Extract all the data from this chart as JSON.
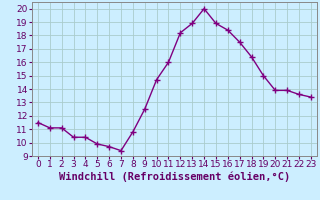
{
  "x": [
    0,
    1,
    2,
    3,
    4,
    5,
    6,
    7,
    8,
    9,
    10,
    11,
    12,
    13,
    14,
    15,
    16,
    17,
    18,
    19,
    20,
    21,
    22,
    23
  ],
  "y": [
    11.5,
    11.1,
    11.1,
    10.4,
    10.4,
    9.9,
    9.7,
    9.4,
    10.8,
    12.5,
    14.7,
    16.0,
    18.2,
    18.9,
    20.0,
    18.9,
    18.4,
    17.5,
    16.4,
    15.0,
    13.9,
    13.9,
    13.6,
    13.4
  ],
  "line_color": "#800080",
  "marker": "+",
  "marker_size": 4,
  "bg_color": "#cceeff",
  "grid_color": "#aacccc",
  "xlabel": "Windchill (Refroidissement éolien,°C)",
  "xlim": [
    -0.5,
    23.5
  ],
  "ylim": [
    9,
    20.5
  ],
  "yticks": [
    9,
    10,
    11,
    12,
    13,
    14,
    15,
    16,
    17,
    18,
    19,
    20
  ],
  "xticks": [
    0,
    1,
    2,
    3,
    4,
    5,
    6,
    7,
    8,
    9,
    10,
    11,
    12,
    13,
    14,
    15,
    16,
    17,
    18,
    19,
    20,
    21,
    22,
    23
  ],
  "tick_label_fontsize": 6.5,
  "xlabel_fontsize": 7.5,
  "line_width": 1.0
}
